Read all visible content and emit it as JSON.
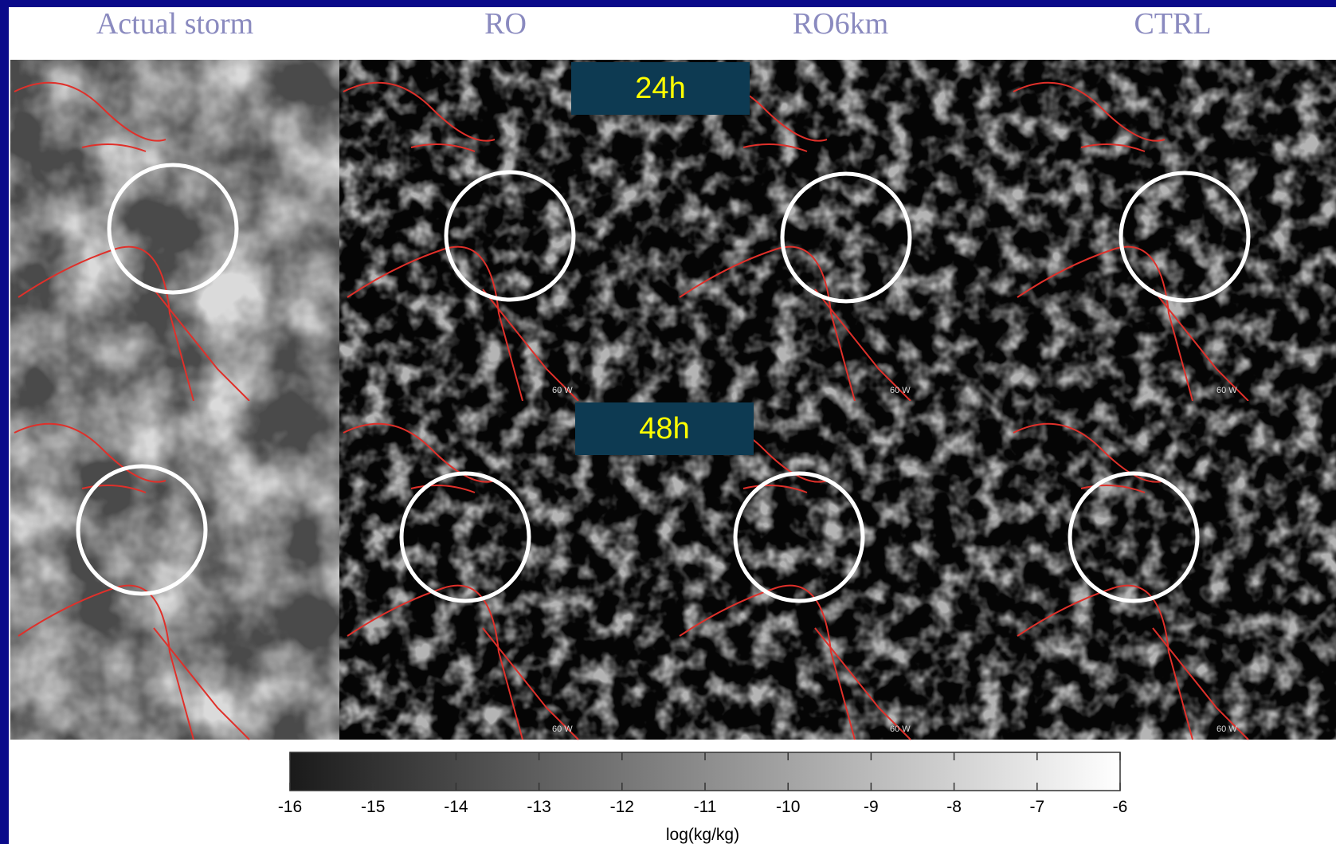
{
  "columns": [
    "Actual storm",
    "RO",
    "RO6km",
    "CTRL"
  ],
  "rows": [
    "24h",
    "48h"
  ],
  "map_label": "60 W",
  "colorbar": {
    "range": [
      -16,
      -6
    ],
    "ticks": [
      -16,
      -15,
      -14,
      -13,
      -12,
      -11,
      -10,
      -9,
      -8,
      -7,
      -6
    ],
    "label": "log(kg/kg)"
  }
}
